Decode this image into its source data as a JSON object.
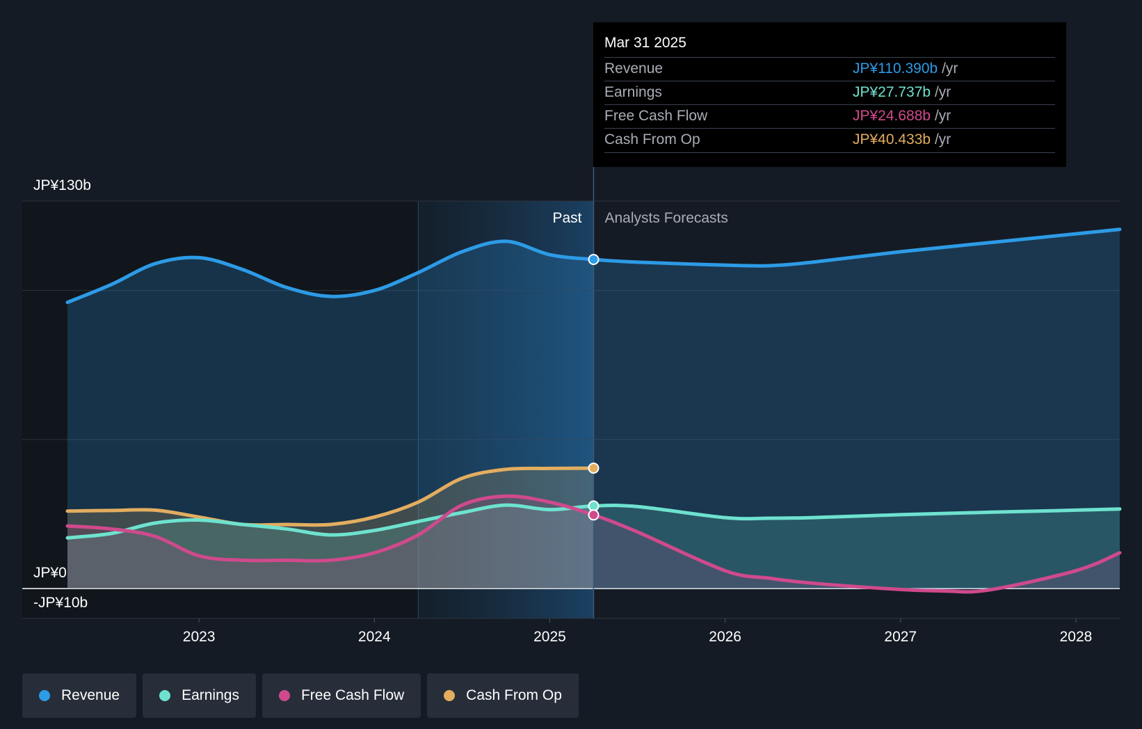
{
  "chart_data": {
    "type": "area",
    "currency": "JP¥",
    "y_axis": {
      "labels": [
        {
          "text": "JP¥130b",
          "value": 130
        },
        {
          "text": "JP¥0",
          "value": 0
        },
        {
          "text": "-JP¥10b",
          "value": -10
        }
      ],
      "ylim": [
        -10,
        130
      ],
      "gridlines": [
        130,
        100,
        50,
        0,
        -10
      ]
    },
    "x_axis": {
      "ticks": [
        "2023",
        "2024",
        "2025",
        "2026",
        "2027",
        "2028"
      ],
      "tick_values": [
        2023.0,
        2024.0,
        2025.0,
        2026.0,
        2027.0,
        2028.0
      ],
      "xlim": [
        2022.0,
        2028.25
      ]
    },
    "divider": {
      "value": 2025.25,
      "past_label": "Past",
      "forecast_label": "Analysts Forecasts"
    },
    "highlight_band": [
      2024.25,
      2025.25
    ],
    "series": [
      {
        "name": "Revenue",
        "color": "#2d9be6",
        "fill_opacity": 0.22,
        "points": [
          [
            2022.25,
            96
          ],
          [
            2022.5,
            102
          ],
          [
            2022.75,
            109
          ],
          [
            2023.0,
            111
          ],
          [
            2023.25,
            107
          ],
          [
            2023.5,
            101
          ],
          [
            2023.75,
            98
          ],
          [
            2024.0,
            100
          ],
          [
            2024.25,
            106
          ],
          [
            2024.5,
            113
          ],
          [
            2024.75,
            116.5
          ],
          [
            2025.0,
            112
          ],
          [
            2025.25,
            110.4
          ],
          [
            2025.5,
            109.5
          ],
          [
            2026.0,
            108.5
          ],
          [
            2026.25,
            108.3
          ],
          [
            2026.5,
            109.5
          ],
          [
            2027.0,
            113
          ],
          [
            2027.5,
            116
          ],
          [
            2028.0,
            119
          ],
          [
            2028.25,
            120.5
          ]
        ]
      },
      {
        "name": "Earnings",
        "color": "#6ee2cf",
        "fill_opacity": 0.18,
        "points": [
          [
            2022.25,
            17
          ],
          [
            2022.5,
            18.5
          ],
          [
            2022.75,
            22
          ],
          [
            2023.0,
            23
          ],
          [
            2023.25,
            21.5
          ],
          [
            2023.5,
            20
          ],
          [
            2023.75,
            18
          ],
          [
            2024.0,
            19.5
          ],
          [
            2024.25,
            22.5
          ],
          [
            2024.5,
            25.5
          ],
          [
            2024.75,
            28
          ],
          [
            2025.0,
            26.5
          ],
          [
            2025.25,
            27.7
          ],
          [
            2025.5,
            27.5
          ],
          [
            2026.0,
            23.8
          ],
          [
            2026.25,
            23.6
          ],
          [
            2026.5,
            23.8
          ],
          [
            2027.0,
            24.8
          ],
          [
            2027.5,
            25.6
          ],
          [
            2028.0,
            26.3
          ],
          [
            2028.25,
            26.7
          ]
        ]
      },
      {
        "name": "Free Cash Flow",
        "color": "#cf4a8d",
        "fill_opacity": 0.15,
        "points": [
          [
            2022.25,
            21
          ],
          [
            2022.5,
            20
          ],
          [
            2022.75,
            17.5
          ],
          [
            2023.0,
            11
          ],
          [
            2023.25,
            9.5
          ],
          [
            2023.5,
            9.5
          ],
          [
            2023.75,
            9.5
          ],
          [
            2024.0,
            12
          ],
          [
            2024.25,
            18
          ],
          [
            2024.5,
            28
          ],
          [
            2024.75,
            31
          ],
          [
            2025.0,
            29
          ],
          [
            2025.25,
            24.7
          ],
          [
            2025.5,
            19
          ],
          [
            2026.0,
            6
          ],
          [
            2026.25,
            3.5
          ],
          [
            2026.5,
            1.8
          ],
          [
            2027.0,
            -0.3
          ],
          [
            2027.25,
            -0.8
          ],
          [
            2027.5,
            -0.5
          ],
          [
            2028.0,
            6
          ],
          [
            2028.25,
            12
          ]
        ]
      },
      {
        "name": "Cash From Op",
        "color": "#e3ad60",
        "fill_opacity": 0.2,
        "points": [
          [
            2022.25,
            26
          ],
          [
            2022.5,
            26.2
          ],
          [
            2022.75,
            26.3
          ],
          [
            2023.0,
            24
          ],
          [
            2023.25,
            21.5
          ],
          [
            2023.5,
            21.5
          ],
          [
            2023.75,
            21.5
          ],
          [
            2024.0,
            24
          ],
          [
            2024.25,
            29
          ],
          [
            2024.5,
            37
          ],
          [
            2024.75,
            40
          ],
          [
            2025.0,
            40.3
          ],
          [
            2025.25,
            40.4
          ]
        ]
      }
    ],
    "tooltip": {
      "date": "Mar 31 2025",
      "rows": [
        {
          "label": "Revenue",
          "value": "JP¥110.390b",
          "unit": "/yr",
          "color": "#2d9be6"
        },
        {
          "label": "Earnings",
          "value": "JP¥27.737b",
          "unit": "/yr",
          "color": "#6ee2cf"
        },
        {
          "label": "Free Cash Flow",
          "value": "JP¥24.688b",
          "unit": "/yr",
          "color": "#cf4a8d"
        },
        {
          "label": "Cash From Op",
          "value": "JP¥40.433b",
          "unit": "/yr",
          "color": "#e3ad60"
        }
      ]
    }
  },
  "legend": [
    {
      "label": "Revenue",
      "color": "#2d9be6"
    },
    {
      "label": "Earnings",
      "color": "#6ee2cf"
    },
    {
      "label": "Free Cash Flow",
      "color": "#cf4a8d"
    },
    {
      "label": "Cash From Op",
      "color": "#e3ad60"
    }
  ]
}
